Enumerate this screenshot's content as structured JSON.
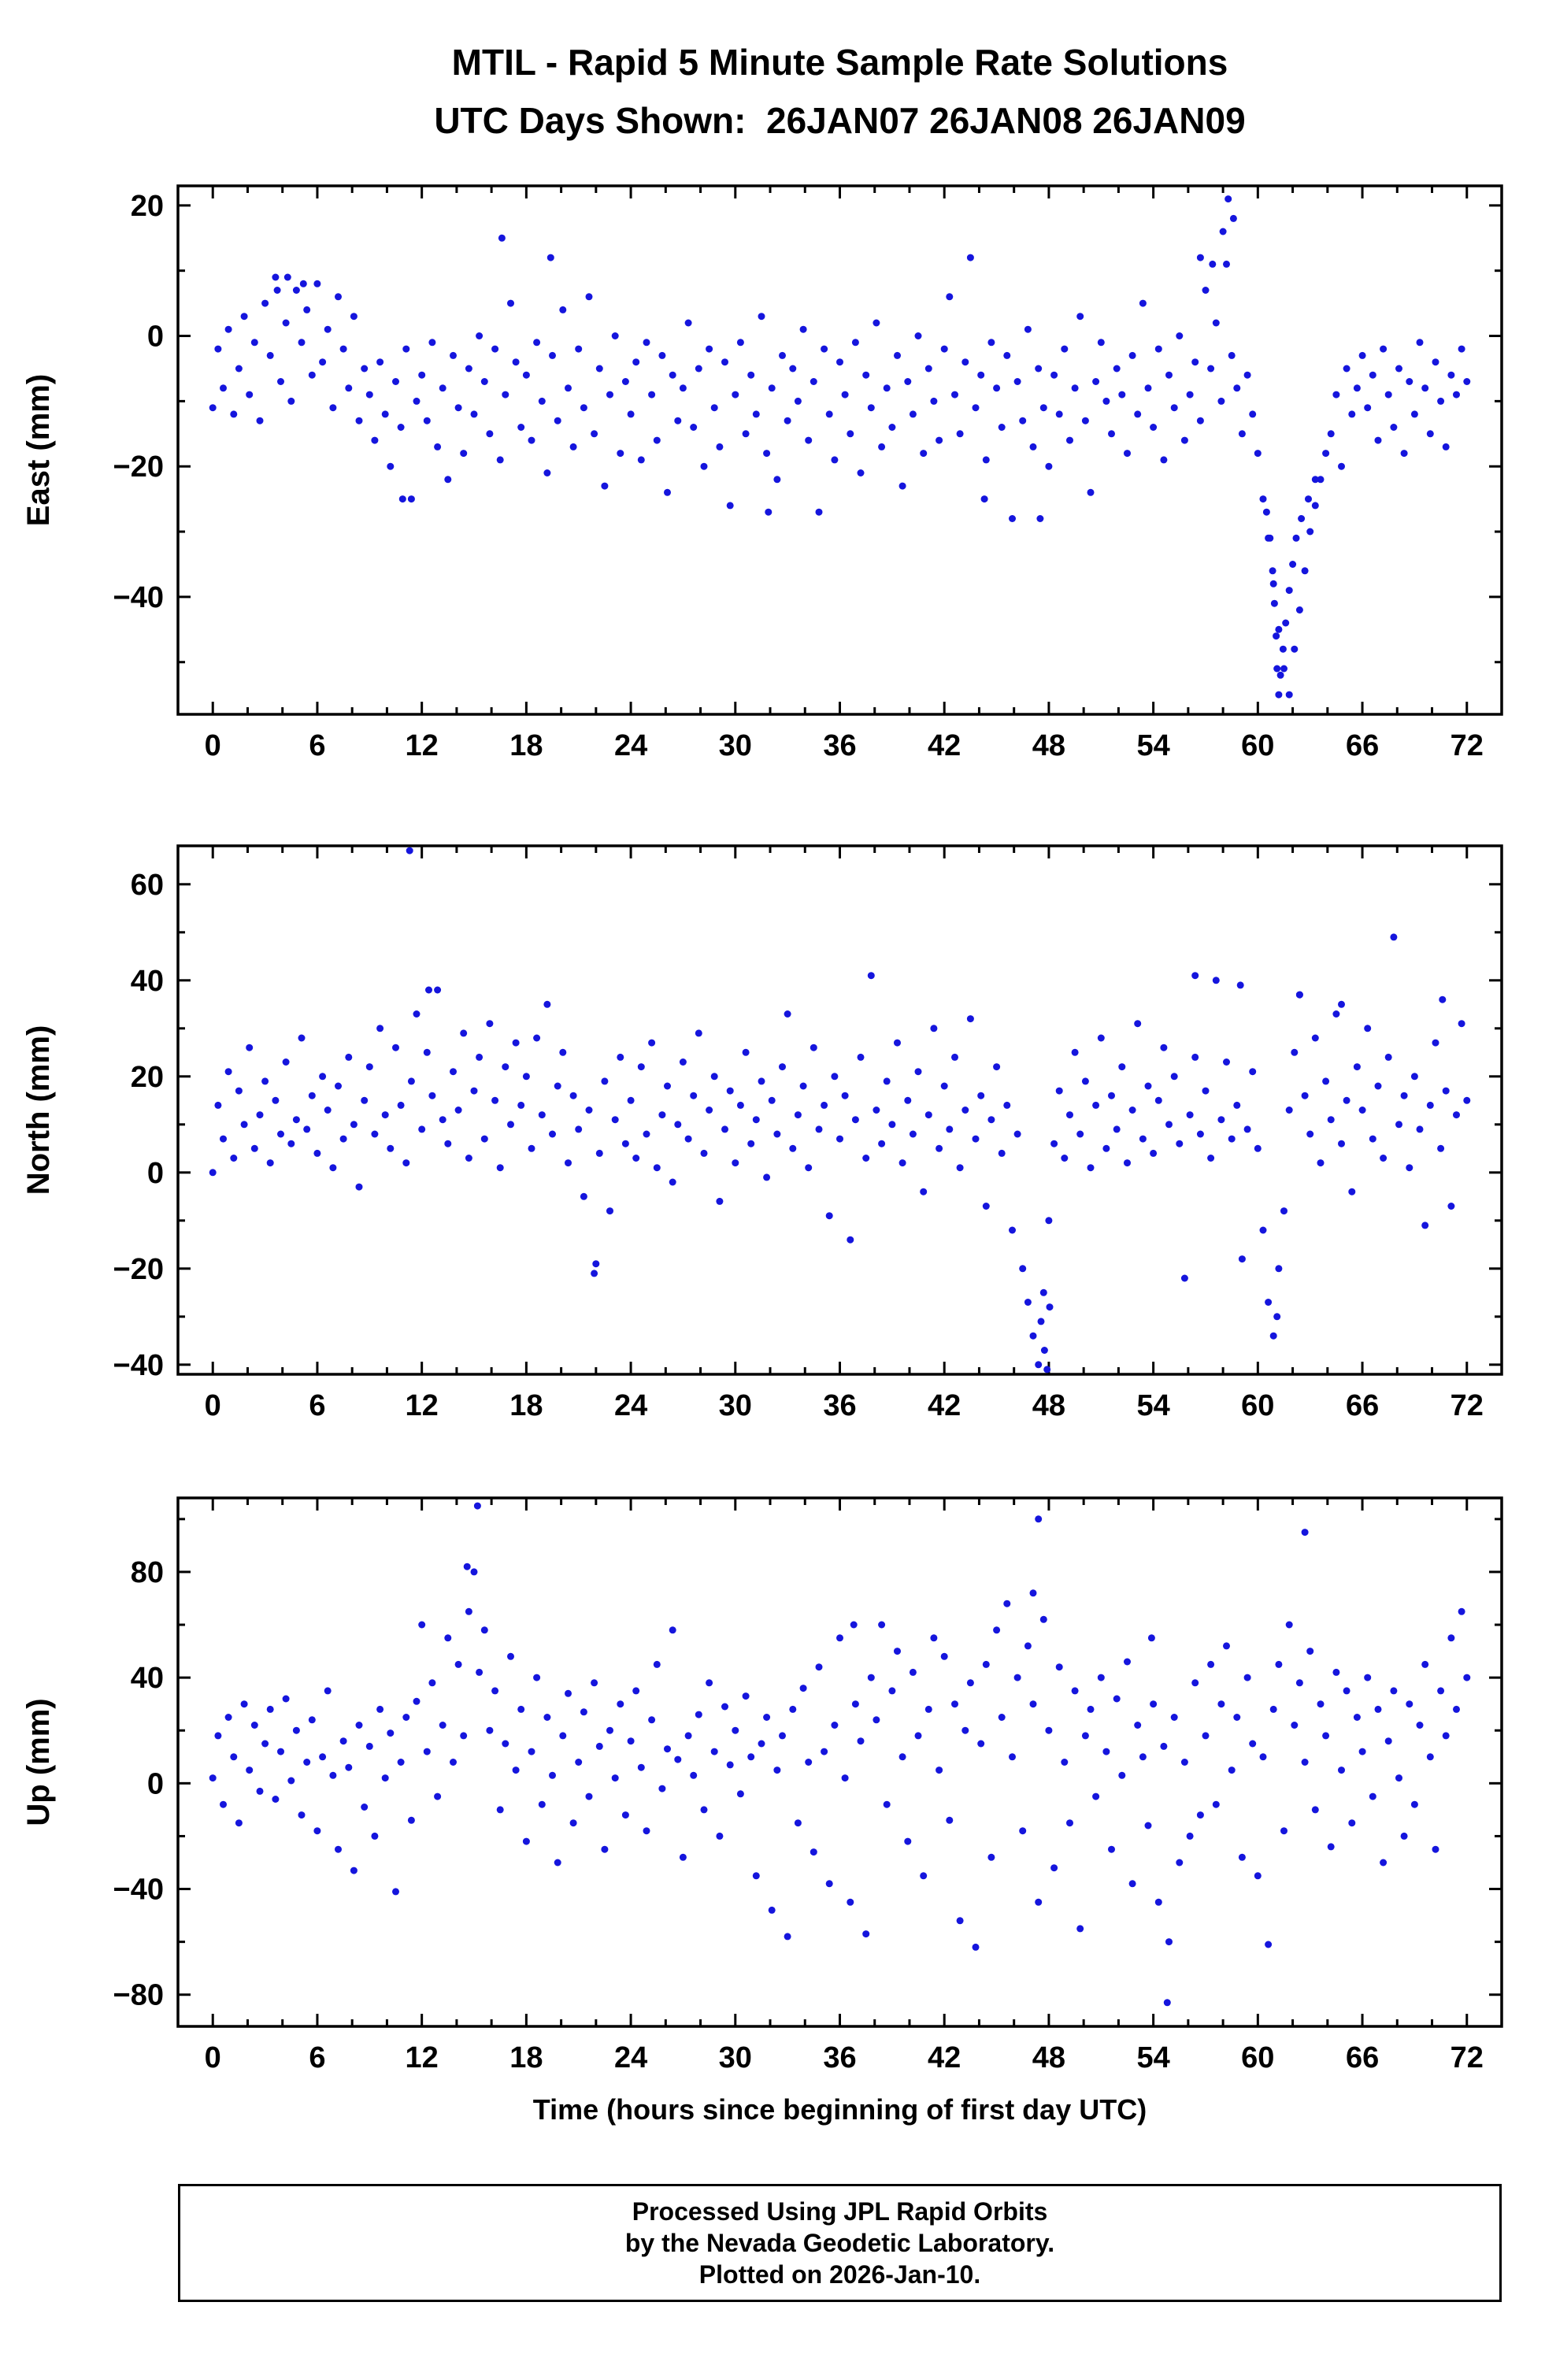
{
  "title": "MTIL - Rapid 5 Minute Sample Rate Solutions",
  "subtitle": "UTC Days Shown:  26JAN07 26JAN08 26JAN09",
  "footer": {
    "lines": [
      "Processed Using JPL Rapid Orbits",
      "by the Nevada Geodetic Laboratory.",
      "Plotted on 2026-Jan-10."
    ]
  },
  "marker": {
    "color": "#1515dd",
    "radius": 4.5
  },
  "frame_color": "#000000",
  "chart_data": [
    {
      "type": "scatter",
      "ylabel": "East (mm)",
      "xlabel": "",
      "xlim": [
        -2,
        74
      ],
      "ylim": [
        -58,
        23
      ],
      "xticks_major": [
        0,
        6,
        12,
        18,
        24,
        30,
        36,
        42,
        48,
        54,
        60,
        66,
        72
      ],
      "xtick_minor_step": 2,
      "yticks_major": [
        -40,
        -20,
        0,
        20
      ],
      "ytick_minor_step": 10,
      "x_start": 0,
      "x_step": 0.3,
      "y": [
        -11,
        -2,
        -8,
        1,
        -12,
        -5,
        3,
        -9,
        -1,
        -13,
        5,
        -3,
        9,
        -7,
        2,
        -10,
        7,
        -1,
        4,
        -6,
        8,
        -4,
        1,
        -11,
        6,
        -2,
        -8,
        3,
        -13,
        -5,
        -9,
        -16,
        -4,
        -12,
        -20,
        -7,
        -14,
        -2,
        -25,
        -10,
        -6,
        -13,
        -1,
        -17,
        -8,
        -22,
        -3,
        -11,
        -18,
        -5,
        -12,
        0,
        -7,
        -15,
        -2,
        -19,
        -9,
        5,
        -4,
        -14,
        -6,
        -16,
        -1,
        -10,
        -21,
        -3,
        -13,
        4,
        -8,
        -17,
        -2,
        -11,
        6,
        -15,
        -5,
        -23,
        -9,
        0,
        -18,
        -7,
        -12,
        -4,
        -19,
        -1,
        -9,
        -16,
        -3,
        -24,
        -6,
        -13,
        -8,
        2,
        -14,
        -5,
        -20,
        -2,
        -11,
        -17,
        -4,
        -26,
        -9,
        -1,
        -15,
        -6,
        -12,
        3,
        -18,
        -8,
        -22,
        -3,
        -13,
        -5,
        -10,
        1,
        -16,
        -7,
        -27,
        -2,
        -12,
        -19,
        -4,
        -9,
        -15,
        -1,
        -21,
        -6,
        -11,
        2,
        -17,
        -8,
        -14,
        -3,
        -23,
        -7,
        -12,
        0,
        -18,
        -5,
        -10,
        -16,
        -2,
        6,
        -9,
        -15,
        -4,
        12,
        -11,
        -6,
        -19,
        -1,
        -8,
        -14,
        -3,
        -28,
        -7,
        -13,
        1,
        -17,
        -5,
        -11,
        -20,
        -6,
        -12,
        -2,
        -16,
        -8,
        3,
        -13,
        -24,
        -7,
        -1,
        -10,
        -15,
        -5,
        -9,
        -18,
        -3,
        -12,
        5,
        -8,
        -14,
        -2,
        -19,
        -6,
        -11,
        0,
        -16,
        -9,
        -4,
        -13,
        7,
        -5,
        2,
        -10,
        11,
        -3,
        -8,
        -15,
        -6,
        -12,
        -18,
        -25,
        -31,
        -38,
        -45,
        -51,
        -55,
        -48,
        -42,
        -36,
        -30,
        -26,
        -22,
        -18,
        -15,
        -9,
        -20,
        -5,
        -12,
        -8,
        -3,
        -11,
        -6,
        -16,
        -2,
        -9,
        -14,
        -5,
        -18,
        -7,
        -12,
        -1,
        -8,
        -15,
        -4,
        -10,
        -17,
        -6,
        -9,
        -2,
        -7
      ],
      "extra_points": [
        [
          60.5,
          -27
        ],
        [
          60.7,
          -31
        ],
        [
          60.85,
          -36
        ],
        [
          60.95,
          -41
        ],
        [
          61.05,
          -46
        ],
        [
          61.1,
          -51
        ],
        [
          61.2,
          -55
        ],
        [
          61.3,
          -52
        ],
        [
          61.45,
          -48
        ],
        [
          61.6,
          -44
        ],
        [
          61.8,
          -39
        ],
        [
          62.0,
          -35
        ],
        [
          62.2,
          -31
        ],
        [
          62.5,
          -28
        ],
        [
          62.9,
          -25
        ],
        [
          63.3,
          -22
        ],
        [
          16.6,
          15
        ],
        [
          19.4,
          12
        ],
        [
          4.3,
          9
        ],
        [
          5.2,
          8
        ],
        [
          3.7,
          7
        ],
        [
          47.5,
          -28
        ],
        [
          10.9,
          -25
        ],
        [
          31.9,
          -27
        ],
        [
          44.3,
          -25
        ],
        [
          56.7,
          12
        ],
        [
          57.4,
          11
        ],
        [
          58.0,
          16
        ],
        [
          58.3,
          21
        ],
        [
          58.6,
          18
        ]
      ]
    },
    {
      "type": "scatter",
      "ylabel": "North (mm)",
      "xlabel": "",
      "xlim": [
        -2,
        74
      ],
      "ylim": [
        -42,
        68
      ],
      "xticks_major": [
        0,
        6,
        12,
        18,
        24,
        30,
        36,
        42,
        48,
        54,
        60,
        66,
        72
      ],
      "xtick_minor_step": 2,
      "yticks_major": [
        -40,
        -20,
        0,
        20,
        40,
        60
      ],
      "ytick_minor_step": 10,
      "x_start": 0,
      "x_step": 0.3,
      "y": [
        0,
        14,
        7,
        21,
        3,
        17,
        10,
        26,
        5,
        12,
        19,
        2,
        15,
        8,
        23,
        6,
        11,
        28,
        9,
        16,
        4,
        20,
        13,
        1,
        18,
        7,
        24,
        10,
        -3,
        15,
        22,
        8,
        30,
        12,
        5,
        26,
        14,
        2,
        19,
        33,
        9,
        25,
        16,
        38,
        11,
        6,
        21,
        13,
        29,
        3,
        17,
        24,
        7,
        31,
        15,
        1,
        22,
        10,
        27,
        14,
        20,
        5,
        28,
        12,
        35,
        8,
        18,
        25,
        2,
        16,
        9,
        -5,
        13,
        -21,
        4,
        19,
        -8,
        11,
        24,
        6,
        15,
        3,
        22,
        8,
        27,
        1,
        12,
        18,
        -2,
        10,
        23,
        7,
        16,
        29,
        4,
        13,
        20,
        -6,
        9,
        17,
        2,
        14,
        25,
        6,
        11,
        19,
        -1,
        15,
        8,
        22,
        33,
        5,
        12,
        18,
        1,
        26,
        9,
        14,
        -9,
        20,
        7,
        16,
        -14,
        11,
        24,
        3,
        41,
        13,
        6,
        19,
        10,
        27,
        2,
        15,
        8,
        21,
        -4,
        12,
        30,
        5,
        18,
        9,
        24,
        1,
        13,
        32,
        7,
        16,
        -7,
        11,
        22,
        4,
        14,
        -12,
        8,
        -20,
        -27,
        -34,
        -40,
        -25,
        -10,
        6,
        17,
        3,
        12,
        25,
        8,
        19,
        1,
        14,
        28,
        5,
        16,
        9,
        22,
        2,
        13,
        31,
        7,
        18,
        4,
        15,
        26,
        10,
        20,
        6,
        -22,
        12,
        24,
        8,
        17,
        3,
        40,
        11,
        23,
        7,
        14,
        -18,
        9,
        21,
        5,
        -12,
        -27,
        -34,
        -20,
        -8,
        13,
        25,
        37,
        16,
        8,
        28,
        2,
        19,
        11,
        33,
        6,
        15,
        -4,
        22,
        13,
        30,
        7,
        18,
        3,
        24,
        49,
        10,
        16,
        1,
        20,
        9,
        -11,
        14,
        27,
        5,
        17,
        -7,
        12,
        31,
        15
      ],
      "extra_points": [
        [
          11.3,
          67
        ],
        [
          47.55,
          -31
        ],
        [
          47.75,
          -37
        ],
        [
          47.9,
          -41
        ],
        [
          48.05,
          -28
        ],
        [
          22.0,
          -19
        ],
        [
          61.1,
          -30
        ],
        [
          56.4,
          41
        ],
        [
          59.0,
          39
        ],
        [
          62.4,
          37
        ],
        [
          12.4,
          38
        ],
        [
          70.6,
          36
        ],
        [
          64.8,
          35
        ]
      ]
    },
    {
      "type": "scatter",
      "ylabel": "Up (mm)",
      "xlabel": "Time (hours since beginning of first day UTC)",
      "xlim": [
        -2,
        74
      ],
      "ylim": [
        -92,
        108
      ],
      "xticks_major": [
        0,
        6,
        12,
        18,
        24,
        30,
        36,
        42,
        48,
        54,
        60,
        66,
        72
      ],
      "xtick_minor_step": 2,
      "yticks_major": [
        -80,
        -40,
        0,
        40,
        80
      ],
      "ytick_minor_step": 20,
      "x_start": 0,
      "x_step": 0.3,
      "y": [
        2,
        18,
        -8,
        25,
        10,
        -15,
        30,
        5,
        22,
        -3,
        15,
        28,
        -6,
        12,
        32,
        1,
        20,
        -12,
        8,
        24,
        -18,
        10,
        35,
        3,
        -25,
        16,
        6,
        -33,
        22,
        -9,
        14,
        -20,
        28,
        2,
        19,
        -41,
        8,
        25,
        -14,
        31,
        60,
        12,
        38,
        -5,
        22,
        55,
        8,
        45,
        18,
        65,
        80,
        42,
        58,
        20,
        35,
        -10,
        15,
        48,
        5,
        28,
        -22,
        12,
        40,
        -8,
        25,
        3,
        -30,
        18,
        34,
        -15,
        8,
        27,
        -5,
        38,
        14,
        -25,
        20,
        2,
        30,
        -12,
        16,
        35,
        6,
        -18,
        24,
        45,
        -2,
        13,
        58,
        9,
        -28,
        18,
        3,
        26,
        -10,
        38,
        12,
        -20,
        29,
        7,
        20,
        -4,
        33,
        10,
        -35,
        15,
        25,
        -48,
        5,
        18,
        -58,
        28,
        -15,
        36,
        8,
        -26,
        44,
        12,
        -38,
        22,
        55,
        2,
        -45,
        30,
        16,
        -57,
        40,
        24,
        60,
        -8,
        35,
        50,
        10,
        -22,
        42,
        18,
        -35,
        28,
        55,
        5,
        48,
        -14,
        30,
        -52,
        20,
        38,
        -62,
        15,
        45,
        -28,
        58,
        25,
        68,
        10,
        40,
        -18,
        52,
        30,
        -45,
        62,
        20,
        -32,
        44,
        8,
        -15,
        35,
        -55,
        18,
        28,
        -5,
        40,
        12,
        -25,
        32,
        3,
        46,
        -38,
        22,
        10,
        -16,
        30,
        -45,
        14,
        -60,
        25,
        -30,
        8,
        -20,
        38,
        -12,
        18,
        45,
        -8,
        30,
        52,
        5,
        25,
        -28,
        40,
        15,
        -35,
        10,
        -61,
        28,
        45,
        -18,
        60,
        22,
        38,
        8,
        50,
        -10,
        30,
        18,
        -24,
        42,
        5,
        35,
        -15,
        25,
        12,
        40,
        -5,
        28,
        -30,
        16,
        35,
        2,
        -20,
        30,
        -8,
        22,
        45,
        10,
        -25,
        35,
        18,
        55,
        28,
        65,
        40
      ],
      "extra_points": [
        [
          15.2,
          105
        ],
        [
          47.4,
          100
        ],
        [
          62.7,
          95
        ],
        [
          54.8,
          -83
        ],
        [
          14.6,
          82
        ],
        [
          47.1,
          72
        ],
        [
          36.8,
          60
        ],
        [
          53.9,
          55
        ]
      ]
    }
  ]
}
